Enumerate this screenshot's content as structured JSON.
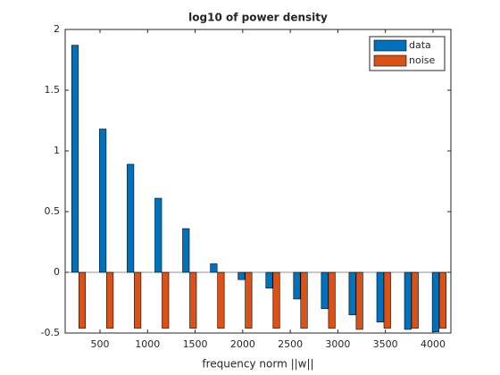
{
  "chart_data": {
    "type": "bar",
    "title": "log10 of power density",
    "xlabel": "frequency norm ||w||",
    "x": [
      275,
      567,
      858,
      1150,
      1441,
      1733,
      2024,
      2316,
      2607,
      2899,
      3190,
      3482,
      3773,
      4065
    ],
    "series": [
      {
        "name": "data",
        "color": "#0072bd",
        "values": [
          1.87,
          1.18,
          0.89,
          0.61,
          0.36,
          0.07,
          -0.06,
          -0.13,
          -0.22,
          -0.3,
          -0.35,
          -0.41,
          -0.47,
          -0.49
        ]
      },
      {
        "name": "noise",
        "color": "#d95319",
        "values": [
          -0.46,
          -0.46,
          -0.46,
          -0.46,
          -0.46,
          -0.46,
          -0.46,
          -0.46,
          -0.46,
          -0.46,
          -0.47,
          -0.46,
          -0.46,
          -0.46
        ]
      }
    ],
    "xlim": [
      134,
      4188
    ],
    "xticks": [
      500,
      1000,
      1500,
      2000,
      2500,
      3000,
      3500,
      4000
    ],
    "ylim": [
      -0.5,
      2
    ],
    "yticks": [
      -0.5,
      0,
      0.5,
      1,
      1.5,
      2
    ],
    "legend": "northeast"
  }
}
